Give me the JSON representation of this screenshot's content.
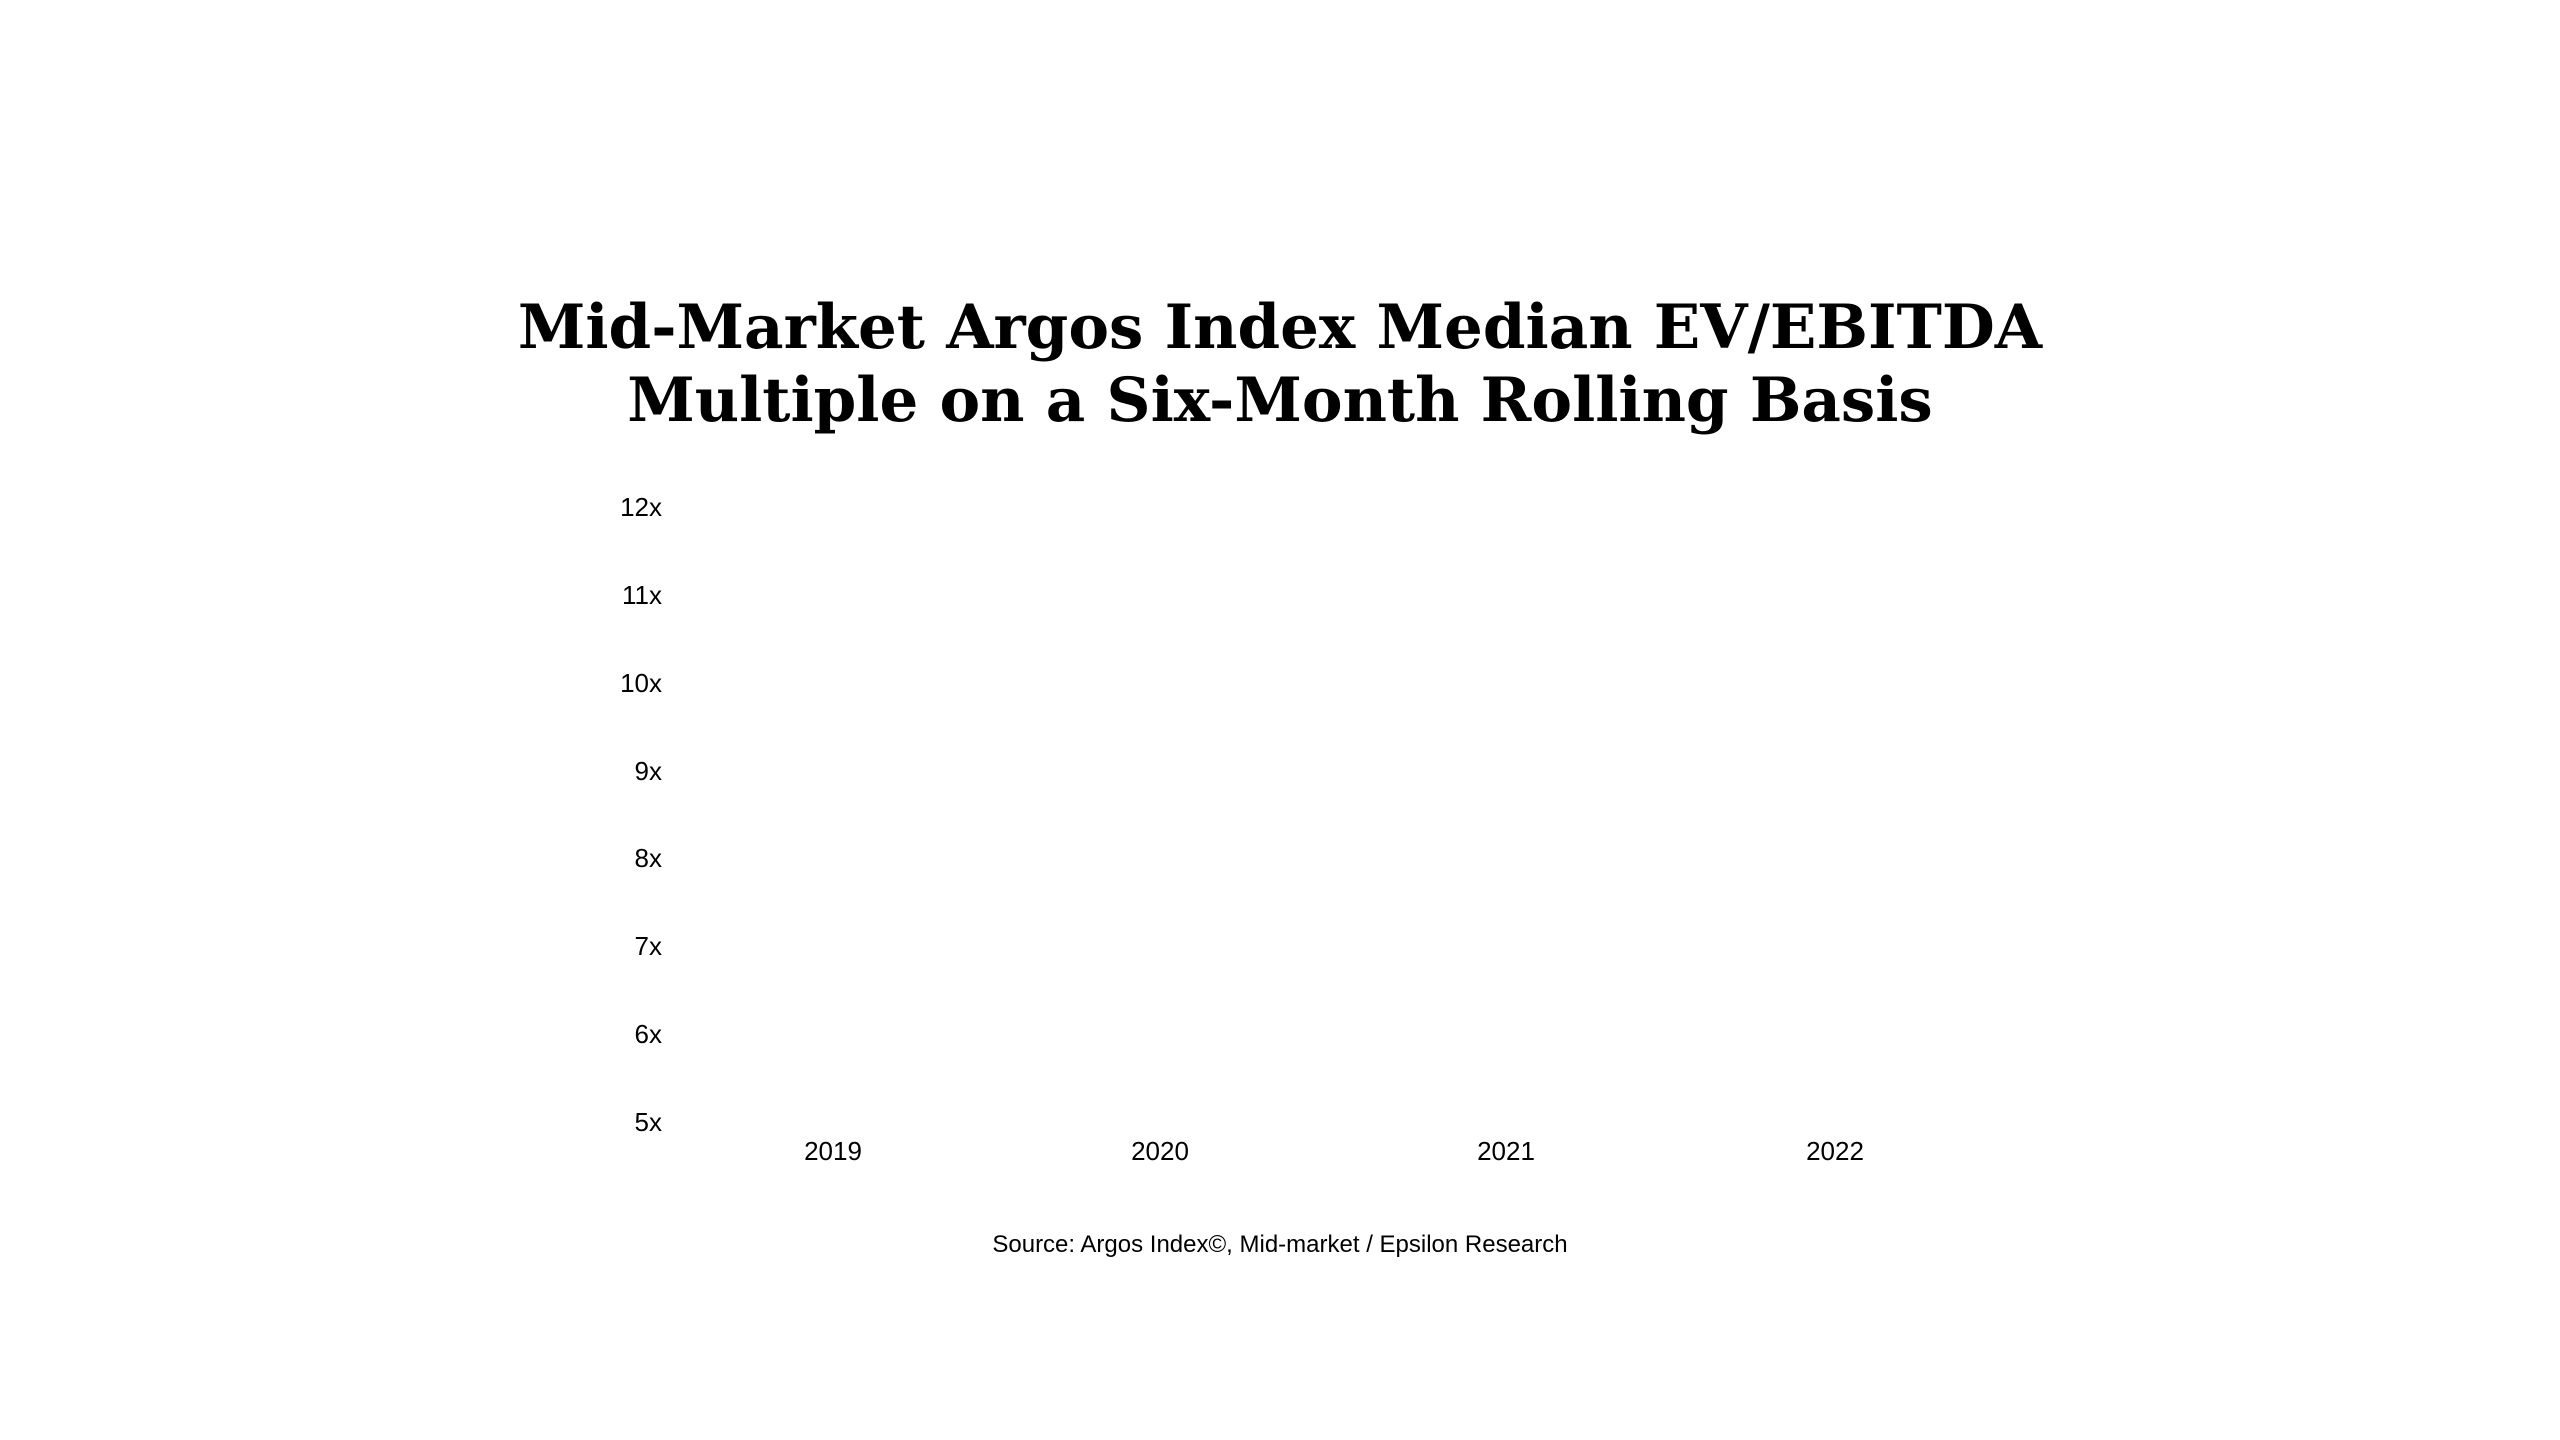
{
  "chart_data": {
    "type": "line",
    "title": "Mid-Market Argos Index Median EV/EBITDA Multiple on a Six-Month Rolling Basis",
    "title_line1": "Mid-Market Argos Index Median EV/EBITDA",
    "title_line2": "Multiple on a Six-Month Rolling Basis",
    "xlabel": "",
    "ylabel": "",
    "x_tick_labels": [
      "2019",
      "2020",
      "2021",
      "2022"
    ],
    "y_tick_labels_top_to_bottom": [
      "12x",
      "11x",
      "10x",
      "9x",
      "8x",
      "7x",
      "6x",
      "5x"
    ],
    "ylim": [
      5,
      12
    ],
    "y_tick_step": 1,
    "grid": false,
    "legend": null,
    "axes_lines_visible": false,
    "series": [],
    "visible_data_points": "none — the plot area between the tick labels is completely blank in the screenshot",
    "source_caption": "Source: Argos Index©, Mid-market / Epsilon Research",
    "colors": {
      "background": "#ffffff",
      "text": "#000000"
    }
  }
}
